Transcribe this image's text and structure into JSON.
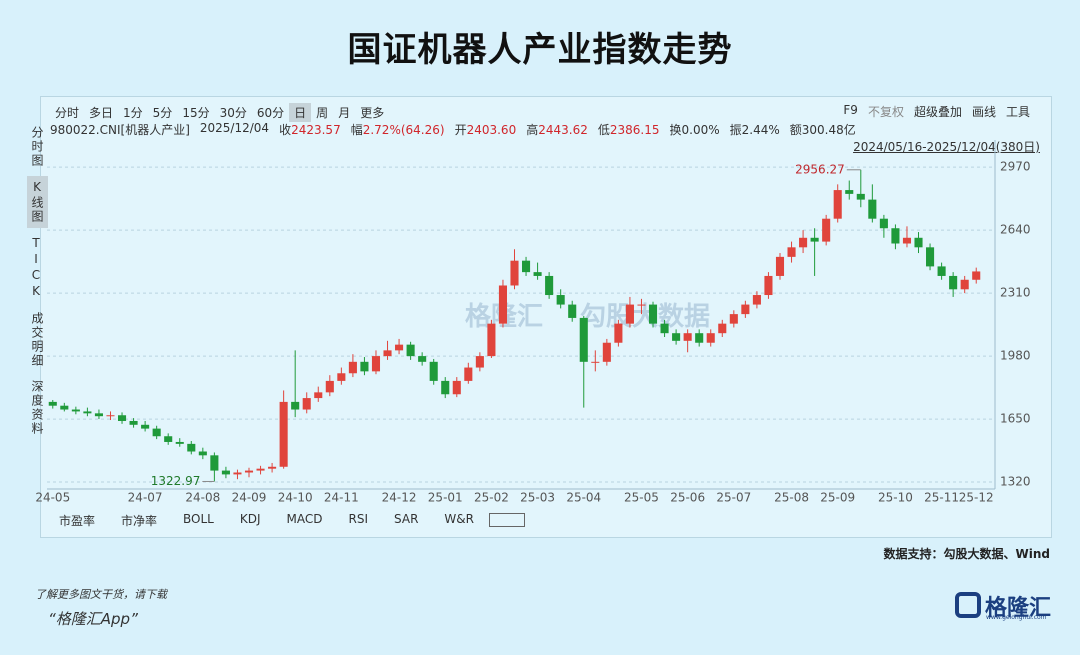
{
  "title": "国证机器人产业指数走势",
  "toolbar": {
    "periods": [
      "分时",
      "多日",
      "1分",
      "5分",
      "15分",
      "30分",
      "60分",
      "日",
      "周",
      "月",
      "更多"
    ],
    "tools": [
      "F9",
      "不复权",
      "超级叠加",
      "画线",
      "工具"
    ]
  },
  "side_tabs": [
    "分时图",
    "K线图",
    "TICK",
    "成交明细",
    "深度资料"
  ],
  "info": {
    "code": "980022.CNI[机器人产业]",
    "date": "2025/12/04",
    "fields": [
      {
        "label": "收",
        "value": "2423.57",
        "color": "#d0262b"
      },
      {
        "label": "幅",
        "value": "2.72%(64.26)",
        "color": "#d0262b"
      },
      {
        "label": "开",
        "value": "2403.60",
        "color": "#d0262b"
      },
      {
        "label": "高",
        "value": "2443.62",
        "color": "#d0262b"
      },
      {
        "label": "低",
        "value": "2386.15",
        "color": "#d0262b"
      },
      {
        "label": "换",
        "value": "0.00%",
        "color": "#333333"
      },
      {
        "label": "振",
        "value": "2.44%",
        "color": "#333333"
      },
      {
        "label": "额",
        "value": "300.48亿",
        "color": "#333333"
      }
    ]
  },
  "range_label": "2024/05/16-2025/12/04(380日)",
  "watermark": [
    "格隆汇",
    "勾股大数据"
  ],
  "indicator_tabs": [
    "市盈率",
    "市净率",
    "BOLL",
    "KDJ",
    "MACD",
    "RSI",
    "SAR",
    "W&R"
  ],
  "source": "数据支持：勾股大数据、Wind",
  "footer": {
    "line1": "了解更多图文干货，请下载",
    "line2": "“格隆汇App”",
    "logo": "格隆汇",
    "logo_url": "www.gelonghui.com"
  },
  "chart_data": {
    "type": "candlestick",
    "up_color": "#e0443c",
    "down_color": "#1f9a3a",
    "ylim": [
      1294,
      3060
    ],
    "yticks": [
      1320,
      1650,
      1980,
      2310,
      2640,
      2970
    ],
    "grid": true,
    "categories": [
      "24-05",
      null,
      null,
      null,
      null,
      null,
      null,
      null,
      "24-07",
      null,
      null,
      null,
      null,
      "24-08",
      null,
      null,
      null,
      "24-09",
      null,
      null,
      null,
      "24-10",
      null,
      null,
      null,
      "24-11",
      null,
      null,
      null,
      null,
      "24-12",
      null,
      null,
      null,
      "25-01",
      null,
      null,
      null,
      "25-02",
      null,
      null,
      null,
      "25-03",
      null,
      null,
      null,
      "25-04",
      null,
      null,
      null,
      null,
      "25-05",
      null,
      null,
      null,
      "25-06",
      null,
      null,
      null,
      "25-07",
      null,
      null,
      null,
      null,
      "25-08",
      null,
      null,
      null,
      "25-09",
      null,
      null,
      null,
      null,
      "25-10",
      null,
      null,
      null,
      "25-11",
      null,
      null,
      "25-12"
    ],
    "ohlc": [
      [
        1740,
        1750,
        1705,
        1720
      ],
      [
        1720,
        1735,
        1690,
        1700
      ],
      [
        1700,
        1715,
        1675,
        1690
      ],
      [
        1690,
        1710,
        1665,
        1680
      ],
      [
        1680,
        1700,
        1650,
        1665
      ],
      [
        1665,
        1690,
        1645,
        1670
      ],
      [
        1670,
        1685,
        1625,
        1640
      ],
      [
        1640,
        1655,
        1605,
        1620
      ],
      [
        1620,
        1640,
        1585,
        1600
      ],
      [
        1600,
        1615,
        1545,
        1560
      ],
      [
        1560,
        1575,
        1515,
        1530
      ],
      [
        1530,
        1550,
        1505,
        1520
      ],
      [
        1520,
        1535,
        1465,
        1480
      ],
      [
        1480,
        1500,
        1440,
        1460
      ],
      [
        1460,
        1475,
        1322.97,
        1380
      ],
      [
        1380,
        1400,
        1340,
        1360
      ],
      [
        1360,
        1385,
        1335,
        1370
      ],
      [
        1370,
        1395,
        1345,
        1380
      ],
      [
        1380,
        1405,
        1360,
        1390
      ],
      [
        1390,
        1420,
        1370,
        1400
      ],
      [
        1400,
        1800,
        1390,
        1740
      ],
      [
        1740,
        2010,
        1660,
        1700
      ],
      [
        1700,
        1790,
        1680,
        1760
      ],
      [
        1760,
        1820,
        1740,
        1790
      ],
      [
        1790,
        1880,
        1770,
        1850
      ],
      [
        1850,
        1920,
        1830,
        1890
      ],
      [
        1890,
        1990,
        1870,
        1950
      ],
      [
        1950,
        1975,
        1880,
        1900
      ],
      [
        1900,
        2010,
        1885,
        1980
      ],
      [
        1980,
        2060,
        1960,
        2010
      ],
      [
        2010,
        2070,
        1990,
        2040
      ],
      [
        2040,
        2055,
        1960,
        1980
      ],
      [
        1980,
        2000,
        1930,
        1950
      ],
      [
        1950,
        1965,
        1830,
        1850
      ],
      [
        1850,
        1870,
        1760,
        1780
      ],
      [
        1780,
        1870,
        1765,
        1850
      ],
      [
        1850,
        1945,
        1835,
        1920
      ],
      [
        1920,
        2000,
        1900,
        1980
      ],
      [
        1980,
        2170,
        1970,
        2150
      ],
      [
        2150,
        2380,
        2130,
        2350
      ],
      [
        2350,
        2540,
        2330,
        2480
      ],
      [
        2480,
        2500,
        2400,
        2420
      ],
      [
        2420,
        2470,
        2380,
        2400
      ],
      [
        2400,
        2420,
        2280,
        2300
      ],
      [
        2300,
        2330,
        2230,
        2250
      ],
      [
        2250,
        2270,
        2160,
        2180
      ],
      [
        2180,
        2190,
        1710,
        1950
      ],
      [
        1950,
        2010,
        1900,
        1950
      ],
      [
        1950,
        2070,
        1930,
        2050
      ],
      [
        2050,
        2170,
        2030,
        2150
      ],
      [
        2150,
        2290,
        2130,
        2250
      ],
      [
        2250,
        2280,
        2200,
        2250
      ],
      [
        2250,
        2265,
        2130,
        2150
      ],
      [
        2150,
        2170,
        2080,
        2100
      ],
      [
        2100,
        2120,
        2040,
        2060
      ],
      [
        2060,
        2120,
        2000,
        2100
      ],
      [
        2100,
        2120,
        2030,
        2050
      ],
      [
        2050,
        2120,
        2030,
        2100
      ],
      [
        2100,
        2170,
        2080,
        2150
      ],
      [
        2150,
        2220,
        2130,
        2200
      ],
      [
        2200,
        2270,
        2180,
        2250
      ],
      [
        2250,
        2320,
        2230,
        2300
      ],
      [
        2300,
        2420,
        2280,
        2400
      ],
      [
        2400,
        2520,
        2380,
        2500
      ],
      [
        2500,
        2580,
        2470,
        2550
      ],
      [
        2550,
        2640,
        2520,
        2600
      ],
      [
        2600,
        2650,
        2400,
        2580
      ],
      [
        2580,
        2720,
        2560,
        2700
      ],
      [
        2700,
        2880,
        2680,
        2850
      ],
      [
        2850,
        2900,
        2800,
        2830
      ],
      [
        2830,
        2956.27,
        2760,
        2800
      ],
      [
        2800,
        2880,
        2680,
        2700
      ],
      [
        2700,
        2720,
        2600,
        2650
      ],
      [
        2650,
        2670,
        2540,
        2570
      ],
      [
        2570,
        2660,
        2550,
        2600
      ],
      [
        2600,
        2630,
        2520,
        2550
      ],
      [
        2550,
        2570,
        2430,
        2450
      ],
      [
        2450,
        2470,
        2380,
        2400
      ],
      [
        2400,
        2420,
        2290,
        2330
      ],
      [
        2330,
        2400,
        2310,
        2380
      ],
      [
        2380,
        2443.62,
        2360,
        2423.57
      ]
    ]
  }
}
